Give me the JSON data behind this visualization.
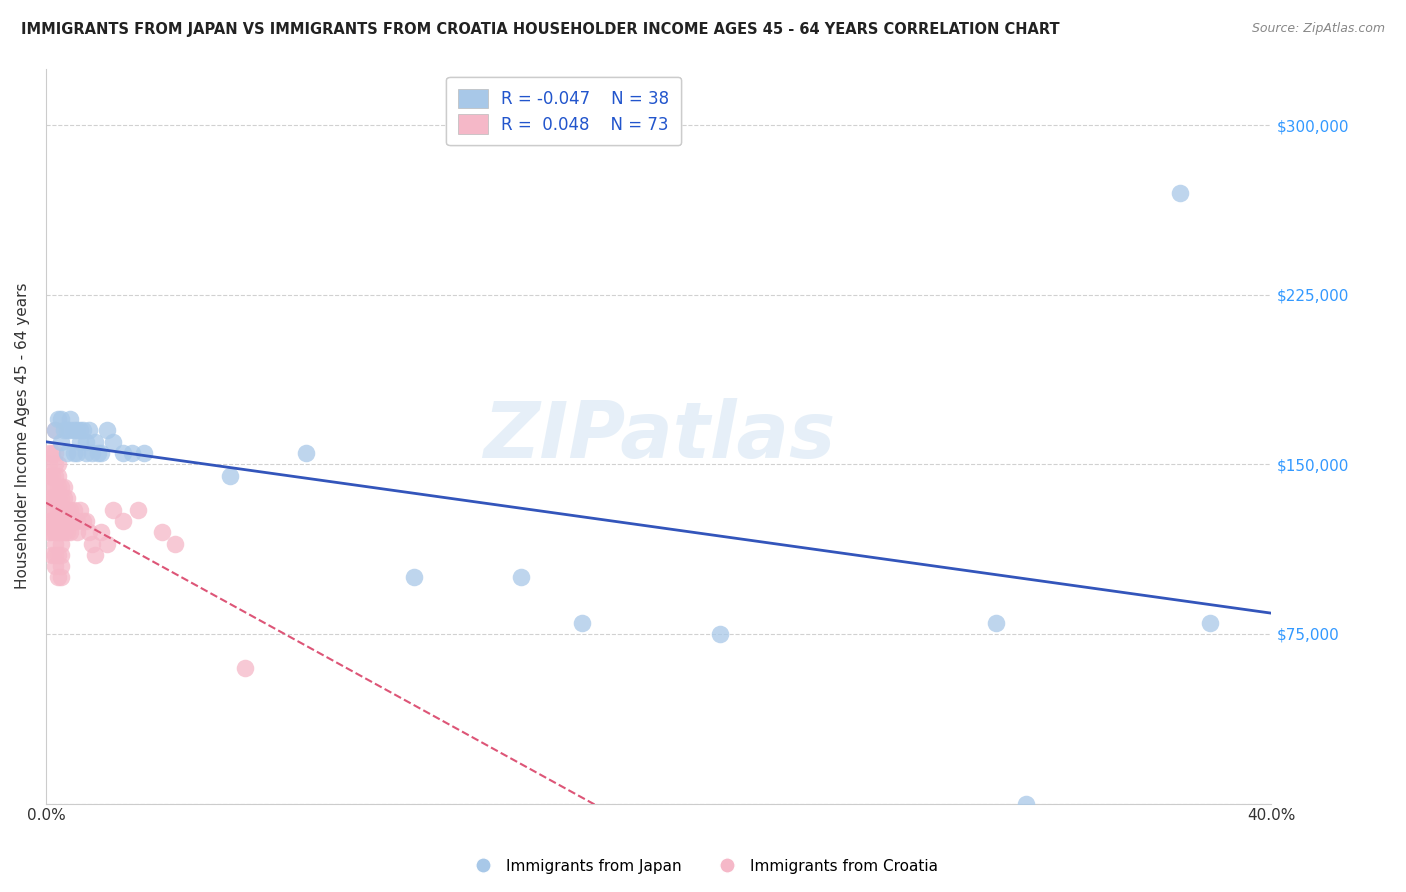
{
  "title": "IMMIGRANTS FROM JAPAN VS IMMIGRANTS FROM CROATIA HOUSEHOLDER INCOME AGES 45 - 64 YEARS CORRELATION CHART",
  "source": "Source: ZipAtlas.com",
  "ylabel": "Householder Income Ages 45 - 64 years",
  "xlim": [
    0.0,
    0.4
  ],
  "ylim": [
    0,
    325000
  ],
  "xticks": [
    0.0,
    0.05,
    0.1,
    0.15,
    0.2,
    0.25,
    0.3,
    0.35,
    0.4
  ],
  "xticklabels": [
    "0.0%",
    "",
    "",
    "",
    "",
    "",
    "",
    "",
    "40.0%"
  ],
  "yticks": [
    0,
    75000,
    150000,
    225000,
    300000
  ],
  "yticklabels": [
    "",
    "$75,000",
    "$150,000",
    "$225,000",
    "$300,000"
  ],
  "legend_japan_r": "-0.047",
  "legend_japan_n": "38",
  "legend_croatia_r": "0.048",
  "legend_croatia_n": "73",
  "japan_color": "#a8c8e8",
  "croatia_color": "#f5b8c8",
  "japan_line_color": "#3355bb",
  "croatia_line_color": "#dd5577",
  "watermark": "ZIPatlas",
  "japan_x": [
    0.003,
    0.004,
    0.005,
    0.005,
    0.006,
    0.007,
    0.007,
    0.008,
    0.008,
    0.009,
    0.009,
    0.01,
    0.01,
    0.011,
    0.011,
    0.012,
    0.013,
    0.013,
    0.014,
    0.015,
    0.016,
    0.017,
    0.018,
    0.02,
    0.022,
    0.025,
    0.028,
    0.032,
    0.06,
    0.085,
    0.12,
    0.155,
    0.175,
    0.22,
    0.31,
    0.32,
    0.37,
    0.38
  ],
  "japan_y": [
    165000,
    170000,
    170000,
    160000,
    165000,
    165000,
    155000,
    170000,
    165000,
    165000,
    155000,
    165000,
    155000,
    165000,
    160000,
    165000,
    160000,
    155000,
    165000,
    155000,
    160000,
    155000,
    155000,
    165000,
    160000,
    155000,
    155000,
    155000,
    145000,
    155000,
    100000,
    100000,
    80000,
    75000,
    80000,
    0,
    270000,
    80000
  ],
  "croatia_x": [
    0.001,
    0.001,
    0.001,
    0.001,
    0.001,
    0.001,
    0.002,
    0.002,
    0.002,
    0.002,
    0.002,
    0.002,
    0.002,
    0.002,
    0.003,
    0.003,
    0.003,
    0.003,
    0.003,
    0.003,
    0.003,
    0.003,
    0.003,
    0.003,
    0.003,
    0.003,
    0.004,
    0.004,
    0.004,
    0.004,
    0.004,
    0.004,
    0.004,
    0.004,
    0.004,
    0.005,
    0.005,
    0.005,
    0.005,
    0.005,
    0.005,
    0.005,
    0.005,
    0.005,
    0.006,
    0.006,
    0.006,
    0.006,
    0.006,
    0.007,
    0.007,
    0.007,
    0.008,
    0.008,
    0.008,
    0.009,
    0.009,
    0.01,
    0.01,
    0.011,
    0.012,
    0.013,
    0.014,
    0.015,
    0.016,
    0.018,
    0.02,
    0.022,
    0.025,
    0.03,
    0.038,
    0.042,
    0.065
  ],
  "croatia_y": [
    120000,
    125000,
    135000,
    145000,
    150000,
    155000,
    110000,
    120000,
    125000,
    130000,
    135000,
    140000,
    145000,
    155000,
    105000,
    110000,
    115000,
    120000,
    125000,
    130000,
    135000,
    140000,
    145000,
    150000,
    155000,
    165000,
    100000,
    110000,
    120000,
    125000,
    130000,
    135000,
    140000,
    145000,
    150000,
    100000,
    105000,
    110000,
    115000,
    120000,
    125000,
    130000,
    135000,
    140000,
    120000,
    125000,
    130000,
    135000,
    140000,
    120000,
    130000,
    135000,
    120000,
    125000,
    130000,
    125000,
    130000,
    120000,
    125000,
    130000,
    125000,
    125000,
    120000,
    115000,
    110000,
    120000,
    115000,
    130000,
    125000,
    130000,
    120000,
    115000,
    60000
  ]
}
